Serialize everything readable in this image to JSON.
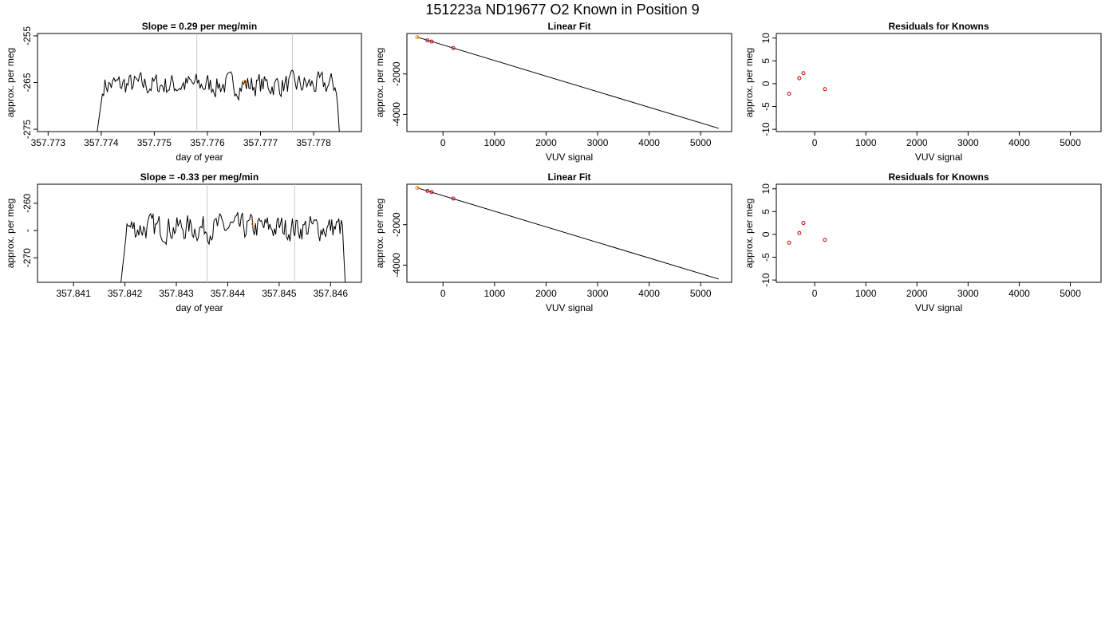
{
  "page_title": "151223a     ND19677   O2 Known in Position  9",
  "colors": {
    "trace": "#000000",
    "marker": "#ff8c00",
    "residual": "#cc0000",
    "divider": "#c8c8c8",
    "frame": "#000000"
  },
  "chart_data": [
    {
      "type": "line",
      "title": "Slope =  0.29  per meg/min",
      "xlabel": "day of year",
      "ylabel": "approx. per meg",
      "xlim": [
        357.7728,
        357.7789
      ],
      "ylim": [
        -275.5,
        -254.5
      ],
      "xticks": [
        357.773,
        357.774,
        357.775,
        357.776,
        357.777,
        357.778
      ],
      "xtick_labels": [
        "357.773",
        "357.774",
        "357.775",
        "357.776",
        "357.777",
        "357.778"
      ],
      "yticks": [
        -275,
        -265,
        -255
      ],
      "ytick_labels": [
        "-275",
        "-265",
        "-255"
      ],
      "vlines": [
        357.7758,
        357.7776
      ],
      "trace_range": [
        357.7739,
        357.7785
      ],
      "trace_mean": -265.5,
      "trace_amplitude": 1.6,
      "marker": {
        "x": 357.7767,
        "y": -264.8
      }
    },
    {
      "type": "scatter",
      "title": "Linear Fit",
      "xlabel": "VUV signal",
      "ylabel": "approx. per meg",
      "xlim": [
        -700,
        5600
      ],
      "ylim": [
        -4850,
        0
      ],
      "xticks": [
        0,
        1000,
        2000,
        3000,
        4000,
        5000
      ],
      "xtick_labels": [
        "0",
        "1000",
        "2000",
        "3000",
        "4000",
        "5000"
      ],
      "yticks": [
        -4000,
        -2000
      ],
      "ytick_labels": [
        "-4000",
        "-2000"
      ],
      "fit_line": {
        "x": [
          -500,
          5350
        ],
        "y": [
          -180,
          -4690
        ]
      },
      "points": [
        {
          "x": -500,
          "y": -180,
          "color": "#ff8c00"
        },
        {
          "x": -300,
          "y": -340,
          "color": "#cc0000"
        },
        {
          "x": -220,
          "y": -400,
          "color": "#cc0000"
        },
        {
          "x": 200,
          "y": -720,
          "color": "#cc0000"
        }
      ]
    },
    {
      "type": "scatter",
      "title": "Residuals for Knowns",
      "xlabel": "VUV signal",
      "ylabel": "approx. per meg",
      "xlim": [
        -750,
        5600
      ],
      "ylim": [
        -10.5,
        11
      ],
      "xticks": [
        0,
        1000,
        2000,
        3000,
        4000,
        5000
      ],
      "xtick_labels": [
        "0",
        "1000",
        "2000",
        "3000",
        "4000",
        "5000"
      ],
      "yticks": [
        -10,
        -5,
        0,
        5,
        10
      ],
      "ytick_labels": [
        "-10",
        "-5",
        "0",
        "5",
        "10"
      ],
      "points": [
        {
          "x": -500,
          "y": -2.2
        },
        {
          "x": -300,
          "y": 1.2
        },
        {
          "x": -220,
          "y": 2.3
        },
        {
          "x": 200,
          "y": -1.2
        }
      ]
    },
    {
      "type": "line",
      "title": "Slope =  -0.33  per meg/min",
      "xlabel": "day of year",
      "ylabel": "approx. per meg",
      "xlim": [
        357.8403,
        357.8466
      ],
      "ylim": [
        -274.5,
        -256.5
      ],
      "xticks": [
        357.841,
        357.842,
        357.843,
        357.844,
        357.845,
        357.846
      ],
      "xtick_labels": [
        "357.841",
        "357.842",
        "357.843",
        "357.844",
        "357.845",
        "357.846"
      ],
      "yticks": [
        -270,
        -265,
        -260
      ],
      "ytick_labels": [
        "-270",
        "-",
        "-260"
      ],
      "vlines": [
        357.8436,
        357.8453
      ],
      "trace_range": [
        357.8419,
        357.8463
      ],
      "trace_mean": -264.5,
      "trace_amplitude": 1.5,
      "marker": {
        "x": 357.8445,
        "y": -263.8
      }
    },
    {
      "type": "scatter",
      "title": "Linear Fit",
      "xlabel": "VUV signal",
      "ylabel": "approx. per meg",
      "xlim": [
        -700,
        5600
      ],
      "ylim": [
        -4850,
        0
      ],
      "xticks": [
        0,
        1000,
        2000,
        3000,
        4000,
        5000
      ],
      "xtick_labels": [
        "0",
        "1000",
        "2000",
        "3000",
        "4000",
        "5000"
      ],
      "yticks": [
        -4000,
        -2000
      ],
      "ytick_labels": [
        "-4000",
        "-2000"
      ],
      "fit_line": {
        "x": [
          -500,
          5350
        ],
        "y": [
          -180,
          -4690
        ]
      },
      "points": [
        {
          "x": -500,
          "y": -180,
          "color": "#ff8c00"
        },
        {
          "x": -300,
          "y": -330,
          "color": "#cc0000"
        },
        {
          "x": -220,
          "y": -390,
          "color": "#cc0000"
        },
        {
          "x": 200,
          "y": -710,
          "color": "#cc0000"
        }
      ]
    },
    {
      "type": "scatter",
      "title": "Residuals for Knowns",
      "xlabel": "VUV signal",
      "ylabel": "approx. per meg",
      "xlim": [
        -750,
        5600
      ],
      "ylim": [
        -10.5,
        11
      ],
      "xticks": [
        0,
        1000,
        2000,
        3000,
        4000,
        5000
      ],
      "xtick_labels": [
        "0",
        "1000",
        "2000",
        "3000",
        "4000",
        "5000"
      ],
      "yticks": [
        -10,
        -5,
        0,
        5,
        10
      ],
      "ytick_labels": [
        "-10",
        "-5",
        "0",
        "5",
        "10"
      ],
      "points": [
        {
          "x": -500,
          "y": -1.8
        },
        {
          "x": -300,
          "y": 0.3
        },
        {
          "x": -220,
          "y": 2.5
        },
        {
          "x": 200,
          "y": -1.2
        }
      ]
    }
  ]
}
